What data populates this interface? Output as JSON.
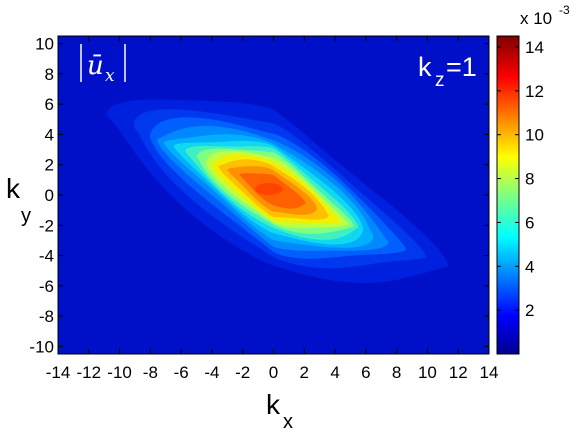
{
  "chart_data": {
    "type": "heatmap",
    "title": "",
    "quantity_label": {
      "symbol": "ū",
      "subscript": "x"
    },
    "panel_label": {
      "main": "k",
      "subscript": "z",
      "suffix": "=1"
    },
    "xlabel": {
      "main": "k",
      "subscript": "x"
    },
    "ylabel": {
      "main": "k",
      "subscript": "y"
    },
    "xlim": [
      -14,
      14
    ],
    "ylim": [
      -10.5,
      10.5
    ],
    "xticks": [
      -14,
      -12,
      -10,
      -8,
      -6,
      -4,
      -2,
      0,
      2,
      4,
      6,
      8,
      10,
      12,
      14
    ],
    "yticks": [
      -10,
      -8,
      -6,
      -4,
      -2,
      0,
      2,
      4,
      6,
      8,
      10
    ],
    "colorbar": {
      "range": [
        0,
        0.0145
      ],
      "ticks": [
        2,
        4,
        6,
        8,
        10,
        12,
        14
      ],
      "scale_text": "x 10",
      "scale_exponent": "-3",
      "colormap": "jet"
    },
    "field": {
      "description_free": true,
      "peak": {
        "kx": 0,
        "ky": 0.3,
        "value": 0.0142
      },
      "levels": [
        {
          "value": 0.001,
          "color": "#0020e0"
        },
        {
          "value": 0.0018,
          "color": "#0038f0"
        },
        {
          "value": 0.0026,
          "color": "#0060ff"
        },
        {
          "value": 0.0034,
          "color": "#0088ff"
        },
        {
          "value": 0.0042,
          "color": "#00b0ff"
        },
        {
          "value": 0.005,
          "color": "#10d8f0"
        },
        {
          "value": 0.0058,
          "color": "#40f0c0"
        },
        {
          "value": 0.0066,
          "color": "#80ff80"
        },
        {
          "value": 0.0074,
          "color": "#c0ff40"
        },
        {
          "value": 0.0082,
          "color": "#f0f000"
        },
        {
          "value": 0.0092,
          "color": "#ffc000"
        },
        {
          "value": 0.0104,
          "color": "#ff9000"
        },
        {
          "value": 0.0118,
          "color": "#ff6000"
        }
      ],
      "background_value": 0.0004,
      "background_color": "#0010c8"
    }
  }
}
